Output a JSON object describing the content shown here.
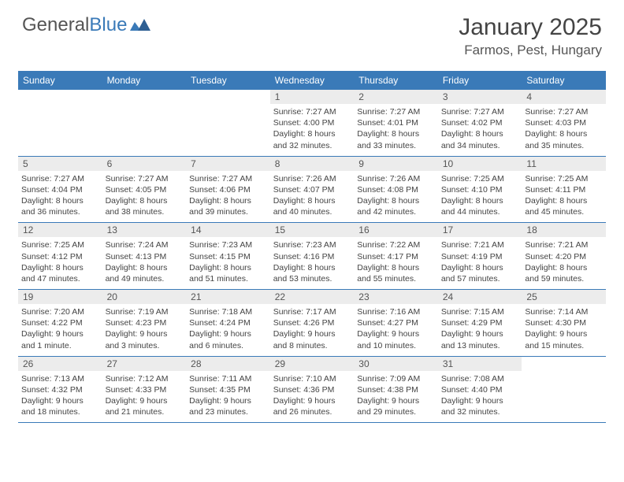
{
  "brand": {
    "part1": "General",
    "part2": "Blue"
  },
  "title": "January 2025",
  "location": "Farmos, Pest, Hungary",
  "colors": {
    "header_bg": "#3a7ab8",
    "daynum_bg": "#ececec",
    "text": "#444444",
    "border": "#3a7ab8"
  },
  "day_names": [
    "Sunday",
    "Monday",
    "Tuesday",
    "Wednesday",
    "Thursday",
    "Friday",
    "Saturday"
  ],
  "weeks": [
    [
      {
        "blank": true
      },
      {
        "blank": true
      },
      {
        "blank": true
      },
      {
        "day": "1",
        "sunrise": "Sunrise: 7:27 AM",
        "sunset": "Sunset: 4:00 PM",
        "dl1": "Daylight: 8 hours",
        "dl2": "and 32 minutes."
      },
      {
        "day": "2",
        "sunrise": "Sunrise: 7:27 AM",
        "sunset": "Sunset: 4:01 PM",
        "dl1": "Daylight: 8 hours",
        "dl2": "and 33 minutes."
      },
      {
        "day": "3",
        "sunrise": "Sunrise: 7:27 AM",
        "sunset": "Sunset: 4:02 PM",
        "dl1": "Daylight: 8 hours",
        "dl2": "and 34 minutes."
      },
      {
        "day": "4",
        "sunrise": "Sunrise: 7:27 AM",
        "sunset": "Sunset: 4:03 PM",
        "dl1": "Daylight: 8 hours",
        "dl2": "and 35 minutes."
      }
    ],
    [
      {
        "day": "5",
        "sunrise": "Sunrise: 7:27 AM",
        "sunset": "Sunset: 4:04 PM",
        "dl1": "Daylight: 8 hours",
        "dl2": "and 36 minutes."
      },
      {
        "day": "6",
        "sunrise": "Sunrise: 7:27 AM",
        "sunset": "Sunset: 4:05 PM",
        "dl1": "Daylight: 8 hours",
        "dl2": "and 38 minutes."
      },
      {
        "day": "7",
        "sunrise": "Sunrise: 7:27 AM",
        "sunset": "Sunset: 4:06 PM",
        "dl1": "Daylight: 8 hours",
        "dl2": "and 39 minutes."
      },
      {
        "day": "8",
        "sunrise": "Sunrise: 7:26 AM",
        "sunset": "Sunset: 4:07 PM",
        "dl1": "Daylight: 8 hours",
        "dl2": "and 40 minutes."
      },
      {
        "day": "9",
        "sunrise": "Sunrise: 7:26 AM",
        "sunset": "Sunset: 4:08 PM",
        "dl1": "Daylight: 8 hours",
        "dl2": "and 42 minutes."
      },
      {
        "day": "10",
        "sunrise": "Sunrise: 7:25 AM",
        "sunset": "Sunset: 4:10 PM",
        "dl1": "Daylight: 8 hours",
        "dl2": "and 44 minutes."
      },
      {
        "day": "11",
        "sunrise": "Sunrise: 7:25 AM",
        "sunset": "Sunset: 4:11 PM",
        "dl1": "Daylight: 8 hours",
        "dl2": "and 45 minutes."
      }
    ],
    [
      {
        "day": "12",
        "sunrise": "Sunrise: 7:25 AM",
        "sunset": "Sunset: 4:12 PM",
        "dl1": "Daylight: 8 hours",
        "dl2": "and 47 minutes."
      },
      {
        "day": "13",
        "sunrise": "Sunrise: 7:24 AM",
        "sunset": "Sunset: 4:13 PM",
        "dl1": "Daylight: 8 hours",
        "dl2": "and 49 minutes."
      },
      {
        "day": "14",
        "sunrise": "Sunrise: 7:23 AM",
        "sunset": "Sunset: 4:15 PM",
        "dl1": "Daylight: 8 hours",
        "dl2": "and 51 minutes."
      },
      {
        "day": "15",
        "sunrise": "Sunrise: 7:23 AM",
        "sunset": "Sunset: 4:16 PM",
        "dl1": "Daylight: 8 hours",
        "dl2": "and 53 minutes."
      },
      {
        "day": "16",
        "sunrise": "Sunrise: 7:22 AM",
        "sunset": "Sunset: 4:17 PM",
        "dl1": "Daylight: 8 hours",
        "dl2": "and 55 minutes."
      },
      {
        "day": "17",
        "sunrise": "Sunrise: 7:21 AM",
        "sunset": "Sunset: 4:19 PM",
        "dl1": "Daylight: 8 hours",
        "dl2": "and 57 minutes."
      },
      {
        "day": "18",
        "sunrise": "Sunrise: 7:21 AM",
        "sunset": "Sunset: 4:20 PM",
        "dl1": "Daylight: 8 hours",
        "dl2": "and 59 minutes."
      }
    ],
    [
      {
        "day": "19",
        "sunrise": "Sunrise: 7:20 AM",
        "sunset": "Sunset: 4:22 PM",
        "dl1": "Daylight: 9 hours",
        "dl2": "and 1 minute."
      },
      {
        "day": "20",
        "sunrise": "Sunrise: 7:19 AM",
        "sunset": "Sunset: 4:23 PM",
        "dl1": "Daylight: 9 hours",
        "dl2": "and 3 minutes."
      },
      {
        "day": "21",
        "sunrise": "Sunrise: 7:18 AM",
        "sunset": "Sunset: 4:24 PM",
        "dl1": "Daylight: 9 hours",
        "dl2": "and 6 minutes."
      },
      {
        "day": "22",
        "sunrise": "Sunrise: 7:17 AM",
        "sunset": "Sunset: 4:26 PM",
        "dl1": "Daylight: 9 hours",
        "dl2": "and 8 minutes."
      },
      {
        "day": "23",
        "sunrise": "Sunrise: 7:16 AM",
        "sunset": "Sunset: 4:27 PM",
        "dl1": "Daylight: 9 hours",
        "dl2": "and 10 minutes."
      },
      {
        "day": "24",
        "sunrise": "Sunrise: 7:15 AM",
        "sunset": "Sunset: 4:29 PM",
        "dl1": "Daylight: 9 hours",
        "dl2": "and 13 minutes."
      },
      {
        "day": "25",
        "sunrise": "Sunrise: 7:14 AM",
        "sunset": "Sunset: 4:30 PM",
        "dl1": "Daylight: 9 hours",
        "dl2": "and 15 minutes."
      }
    ],
    [
      {
        "day": "26",
        "sunrise": "Sunrise: 7:13 AM",
        "sunset": "Sunset: 4:32 PM",
        "dl1": "Daylight: 9 hours",
        "dl2": "and 18 minutes."
      },
      {
        "day": "27",
        "sunrise": "Sunrise: 7:12 AM",
        "sunset": "Sunset: 4:33 PM",
        "dl1": "Daylight: 9 hours",
        "dl2": "and 21 minutes."
      },
      {
        "day": "28",
        "sunrise": "Sunrise: 7:11 AM",
        "sunset": "Sunset: 4:35 PM",
        "dl1": "Daylight: 9 hours",
        "dl2": "and 23 minutes."
      },
      {
        "day": "29",
        "sunrise": "Sunrise: 7:10 AM",
        "sunset": "Sunset: 4:36 PM",
        "dl1": "Daylight: 9 hours",
        "dl2": "and 26 minutes."
      },
      {
        "day": "30",
        "sunrise": "Sunrise: 7:09 AM",
        "sunset": "Sunset: 4:38 PM",
        "dl1": "Daylight: 9 hours",
        "dl2": "and 29 minutes."
      },
      {
        "day": "31",
        "sunrise": "Sunrise: 7:08 AM",
        "sunset": "Sunset: 4:40 PM",
        "dl1": "Daylight: 9 hours",
        "dl2": "and 32 minutes."
      },
      {
        "blank": true
      }
    ]
  ]
}
